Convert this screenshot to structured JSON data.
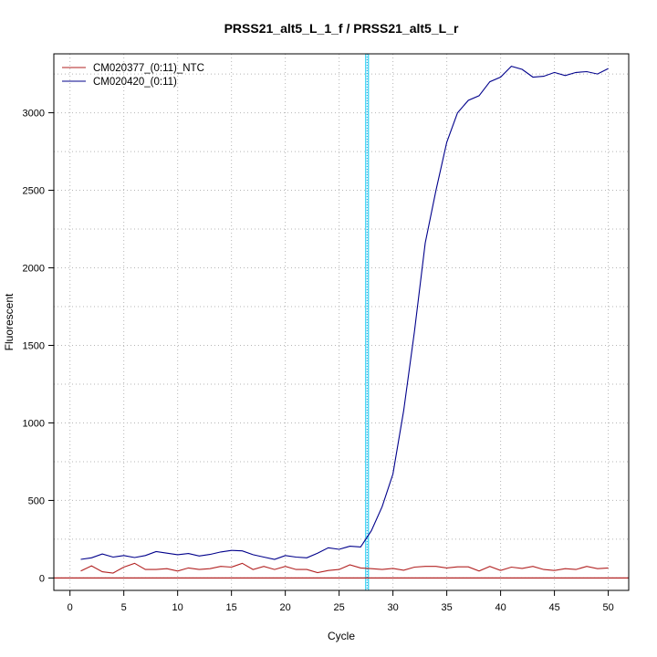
{
  "chart_data": {
    "type": "line",
    "title": "PRSS21_alt5_L_1_f / PRSS21_alt5_L_r",
    "xlabel": "Cycle",
    "ylabel": "Fluorescent",
    "xlim": [
      -1.5,
      51.9
    ],
    "ylim": [
      -80,
      3380
    ],
    "xticks": [
      0,
      5,
      10,
      15,
      20,
      25,
      30,
      35,
      40,
      45,
      50
    ],
    "yticks": [
      0,
      500,
      1000,
      1500,
      2000,
      2500,
      3000
    ],
    "grid": true,
    "legend_position": "top-left",
    "threshold_cycle": 27.6,
    "baseline_y": 0,
    "x": [
      1,
      2,
      3,
      4,
      5,
      6,
      7,
      8,
      9,
      10,
      11,
      12,
      13,
      14,
      15,
      16,
      17,
      18,
      19,
      20,
      21,
      22,
      23,
      24,
      25,
      26,
      27,
      28,
      29,
      30,
      31,
      32,
      33,
      34,
      35,
      36,
      37,
      38,
      39,
      40,
      41,
      42,
      43,
      44,
      45,
      46,
      47,
      48,
      49,
      50
    ],
    "series": [
      {
        "name": "CM020377_(0:11)_NTC",
        "color": "#b22222",
        "values": [
          45,
          78,
          40,
          32,
          70,
          95,
          55,
          55,
          60,
          45,
          65,
          55,
          60,
          75,
          70,
          95,
          55,
          75,
          55,
          75,
          55,
          55,
          35,
          48,
          55,
          85,
          65,
          60,
          55,
          62,
          50,
          70,
          75,
          75,
          65,
          72,
          72,
          45,
          75,
          48,
          70,
          62,
          75,
          55,
          48,
          60,
          55,
          75,
          60,
          65
        ]
      },
      {
        "name": "CM020420_(0:11)",
        "color": "#00008b",
        "values": [
          120,
          130,
          155,
          135,
          145,
          132,
          145,
          170,
          160,
          150,
          158,
          142,
          152,
          168,
          178,
          175,
          150,
          135,
          120,
          145,
          135,
          130,
          160,
          195,
          185,
          205,
          200,
          305,
          460,
          670,
          1080,
          1590,
          2160,
          2500,
          2810,
          3000,
          3080,
          3110,
          3200,
          3230,
          3300,
          3280,
          3230,
          3235,
          3260,
          3240,
          3260,
          3265,
          3250,
          3285
        ]
      }
    ]
  }
}
